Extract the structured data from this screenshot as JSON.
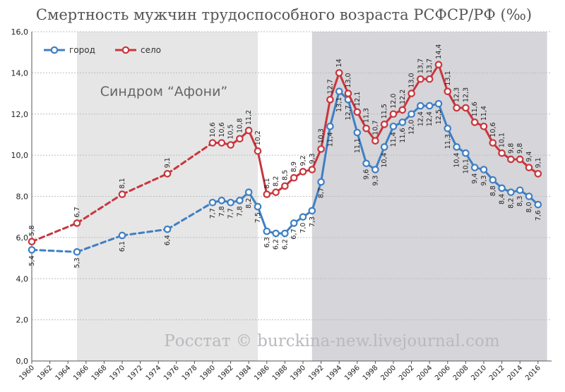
{
  "chart_data": {
    "type": "line",
    "title": "Смертность мужчин трудоспособного возраста РСФСР/РФ (‰)",
    "xlabel": "",
    "ylabel": "",
    "xlim": [
      1960,
      2016
    ],
    "ylim": [
      0,
      16
    ],
    "yticks": [
      "0,0",
      "2,0",
      "4,0",
      "6,0",
      "8,0",
      "10,0",
      "12,0",
      "14,0",
      "16,0"
    ],
    "xticks": [
      "1960",
      "1962",
      "1964",
      "1966",
      "1968",
      "1970",
      "1972",
      "1974",
      "1976",
      "1978",
      "1980",
      "1982",
      "1984",
      "1986",
      "1988",
      "1990",
      "1992",
      "1994",
      "1996",
      "1998",
      "2000",
      "2002",
      "2004",
      "2006",
      "2008",
      "2010",
      "2012",
      "2014",
      "2016"
    ],
    "grid": true,
    "legend_position": "top-left",
    "annotation": "Синдром “Афони”",
    "watermark": "Росстат © burckina-new.livejournal.com",
    "shaded_regions": [
      {
        "from": 1965,
        "to": 1985,
        "color": "#e6e6e6"
      },
      {
        "from": 1991,
        "to": 2017,
        "color": "#d5d5da"
      }
    ],
    "series": [
      {
        "name": "город",
        "color": "#3f7fc3",
        "points": [
          {
            "x": 1960,
            "y": 5.4,
            "label": "5,4",
            "solid": false
          },
          {
            "x": 1965,
            "y": 5.3,
            "label": "5,3",
            "solid": false
          },
          {
            "x": 1970,
            "y": 6.1,
            "label": "6,1",
            "solid": false
          },
          {
            "x": 1975,
            "y": 6.4,
            "label": "6,4",
            "solid": false
          },
          {
            "x": 1980,
            "y": 7.7,
            "label": "7,7",
            "solid": true
          },
          {
            "x": 1981,
            "y": 7.8,
            "label": "7,8",
            "solid": true
          },
          {
            "x": 1982,
            "y": 7.7,
            "label": "7,7",
            "solid": true
          },
          {
            "x": 1983,
            "y": 7.8,
            "label": "7,8",
            "solid": true
          },
          {
            "x": 1984,
            "y": 8.2,
            "label": "8,2",
            "solid": true
          },
          {
            "x": 1985,
            "y": 7.5,
            "label": "7,5",
            "solid": true
          },
          {
            "x": 1986,
            "y": 6.3,
            "label": "6,3",
            "solid": true
          },
          {
            "x": 1987,
            "y": 6.2,
            "label": "6,2",
            "solid": true
          },
          {
            "x": 1988,
            "y": 6.2,
            "label": "6,2",
            "solid": true
          },
          {
            "x": 1989,
            "y": 6.7,
            "label": "6,7",
            "solid": true
          },
          {
            "x": 1990,
            "y": 7.0,
            "label": "7,0",
            "solid": true
          },
          {
            "x": 1991,
            "y": 7.3,
            "label": "7,3",
            "solid": true
          },
          {
            "x": 1992,
            "y": 8.7,
            "label": "8,7",
            "solid": true
          },
          {
            "x": 1993,
            "y": 11.4,
            "label": "11,4",
            "solid": true
          },
          {
            "x": 1994,
            "y": 13.1,
            "label": "13,1",
            "solid": true
          },
          {
            "x": 1995,
            "y": 12.7,
            "label": "12,7",
            "solid": true
          },
          {
            "x": 1996,
            "y": 11.1,
            "label": "11,1",
            "solid": true
          },
          {
            "x": 1997,
            "y": 9.6,
            "label": "9,6",
            "solid": true
          },
          {
            "x": 1998,
            "y": 9.3,
            "label": "9,3",
            "solid": true
          },
          {
            "x": 1999,
            "y": 10.4,
            "label": "10,4",
            "solid": true
          },
          {
            "x": 2000,
            "y": 11.4,
            "label": "11,4",
            "solid": true
          },
          {
            "x": 2001,
            "y": 11.6,
            "label": "11,6",
            "solid": true
          },
          {
            "x": 2002,
            "y": 12.0,
            "label": "12,0",
            "solid": true
          },
          {
            "x": 2003,
            "y": 12.4,
            "label": "12,4",
            "solid": true
          },
          {
            "x": 2004,
            "y": 12.4,
            "label": "12,4",
            "solid": true
          },
          {
            "x": 2005,
            "y": 12.5,
            "label": "12,5",
            "solid": true
          },
          {
            "x": 2006,
            "y": 11.3,
            "label": "11,3",
            "solid": true
          },
          {
            "x": 2007,
            "y": 10.4,
            "label": "10,4",
            "solid": true
          },
          {
            "x": 2008,
            "y": 10.1,
            "label": "10,1",
            "solid": true
          },
          {
            "x": 2009,
            "y": 9.4,
            "label": "9,4",
            "solid": true
          },
          {
            "x": 2010,
            "y": 9.3,
            "label": "9,3",
            "solid": true
          },
          {
            "x": 2011,
            "y": 8.8,
            "label": "8,8",
            "solid": true
          },
          {
            "x": 2012,
            "y": 8.4,
            "label": "8,4",
            "solid": true
          },
          {
            "x": 2013,
            "y": 8.2,
            "label": "8,2",
            "solid": true
          },
          {
            "x": 2014,
            "y": 8.3,
            "label": "8,3",
            "solid": true
          },
          {
            "x": 2015,
            "y": 8.0,
            "label": "8,0",
            "solid": true
          },
          {
            "x": 2016,
            "y": 7.6,
            "label": "7,6",
            "solid": true
          }
        ]
      },
      {
        "name": "село",
        "color": "#c8363c",
        "points": [
          {
            "x": 1960,
            "y": 5.8,
            "label": "5,8",
            "solid": false
          },
          {
            "x": 1965,
            "y": 6.7,
            "label": "6,7",
            "solid": false
          },
          {
            "x": 1970,
            "y": 8.1,
            "label": "8,1",
            "solid": false
          },
          {
            "x": 1975,
            "y": 9.1,
            "label": "9,1",
            "solid": false
          },
          {
            "x": 1980,
            "y": 10.6,
            "label": "10,6",
            "solid": true
          },
          {
            "x": 1981,
            "y": 10.6,
            "label": "10,6",
            "solid": true
          },
          {
            "x": 1982,
            "y": 10.5,
            "label": "10,5",
            "solid": true
          },
          {
            "x": 1983,
            "y": 10.8,
            "label": "10,8",
            "solid": true
          },
          {
            "x": 1984,
            "y": 11.2,
            "label": "11,2",
            "solid": true
          },
          {
            "x": 1985,
            "y": 10.2,
            "label": "10,2",
            "solid": true
          },
          {
            "x": 1986,
            "y": 8.1,
            "label": "8,1",
            "solid": true
          },
          {
            "x": 1987,
            "y": 8.2,
            "label": "8,2",
            "solid": true
          },
          {
            "x": 1988,
            "y": 8.5,
            "label": "8,5",
            "solid": true
          },
          {
            "x": 1989,
            "y": 8.9,
            "label": "8,9",
            "solid": true
          },
          {
            "x": 1990,
            "y": 9.2,
            "label": "9,2",
            "solid": true
          },
          {
            "x": 1991,
            "y": 9.3,
            "label": "9,3",
            "solid": true
          },
          {
            "x": 1992,
            "y": 10.3,
            "label": "10,3",
            "solid": true
          },
          {
            "x": 1993,
            "y": 12.7,
            "label": "12,7",
            "solid": true
          },
          {
            "x": 1994,
            "y": 14.0,
            "label": "14",
            "solid": true
          },
          {
            "x": 1995,
            "y": 13.0,
            "label": "13,0",
            "solid": true
          },
          {
            "x": 1996,
            "y": 12.1,
            "label": "12,1",
            "solid": true
          },
          {
            "x": 1997,
            "y": 11.3,
            "label": "11,3",
            "solid": true
          },
          {
            "x": 1998,
            "y": 10.7,
            "label": "10,7",
            "solid": true
          },
          {
            "x": 1999,
            "y": 11.5,
            "label": "11,5",
            "solid": true
          },
          {
            "x": 2000,
            "y": 12.0,
            "label": "12,0",
            "solid": true
          },
          {
            "x": 2001,
            "y": 12.2,
            "label": "12,2",
            "solid": true
          },
          {
            "x": 2002,
            "y": 13.0,
            "label": "13,0",
            "solid": true
          },
          {
            "x": 2003,
            "y": 13.7,
            "label": "13,7",
            "solid": true
          },
          {
            "x": 2004,
            "y": 13.7,
            "label": "13,7",
            "solid": true
          },
          {
            "x": 2005,
            "y": 14.4,
            "label": "14,4",
            "solid": true
          },
          {
            "x": 2006,
            "y": 13.1,
            "label": "13,1",
            "solid": true
          },
          {
            "x": 2007,
            "y": 12.3,
            "label": "12,3",
            "solid": true
          },
          {
            "x": 2008,
            "y": 12.3,
            "label": "12,3",
            "solid": true
          },
          {
            "x": 2009,
            "y": 11.6,
            "label": "11,6",
            "solid": true
          },
          {
            "x": 2010,
            "y": 11.4,
            "label": "11,4",
            "solid": true
          },
          {
            "x": 2011,
            "y": 10.6,
            "label": "10,6",
            "solid": true
          },
          {
            "x": 2012,
            "y": 10.1,
            "label": "10,1",
            "solid": true
          },
          {
            "x": 2013,
            "y": 9.8,
            "label": "9,8",
            "solid": true
          },
          {
            "x": 2014,
            "y": 9.8,
            "label": "9,8",
            "solid": true
          },
          {
            "x": 2015,
            "y": 9.4,
            "label": "9,4",
            "solid": true
          },
          {
            "x": 2016,
            "y": 9.1,
            "label": "9,1",
            "solid": true
          }
        ]
      }
    ]
  }
}
